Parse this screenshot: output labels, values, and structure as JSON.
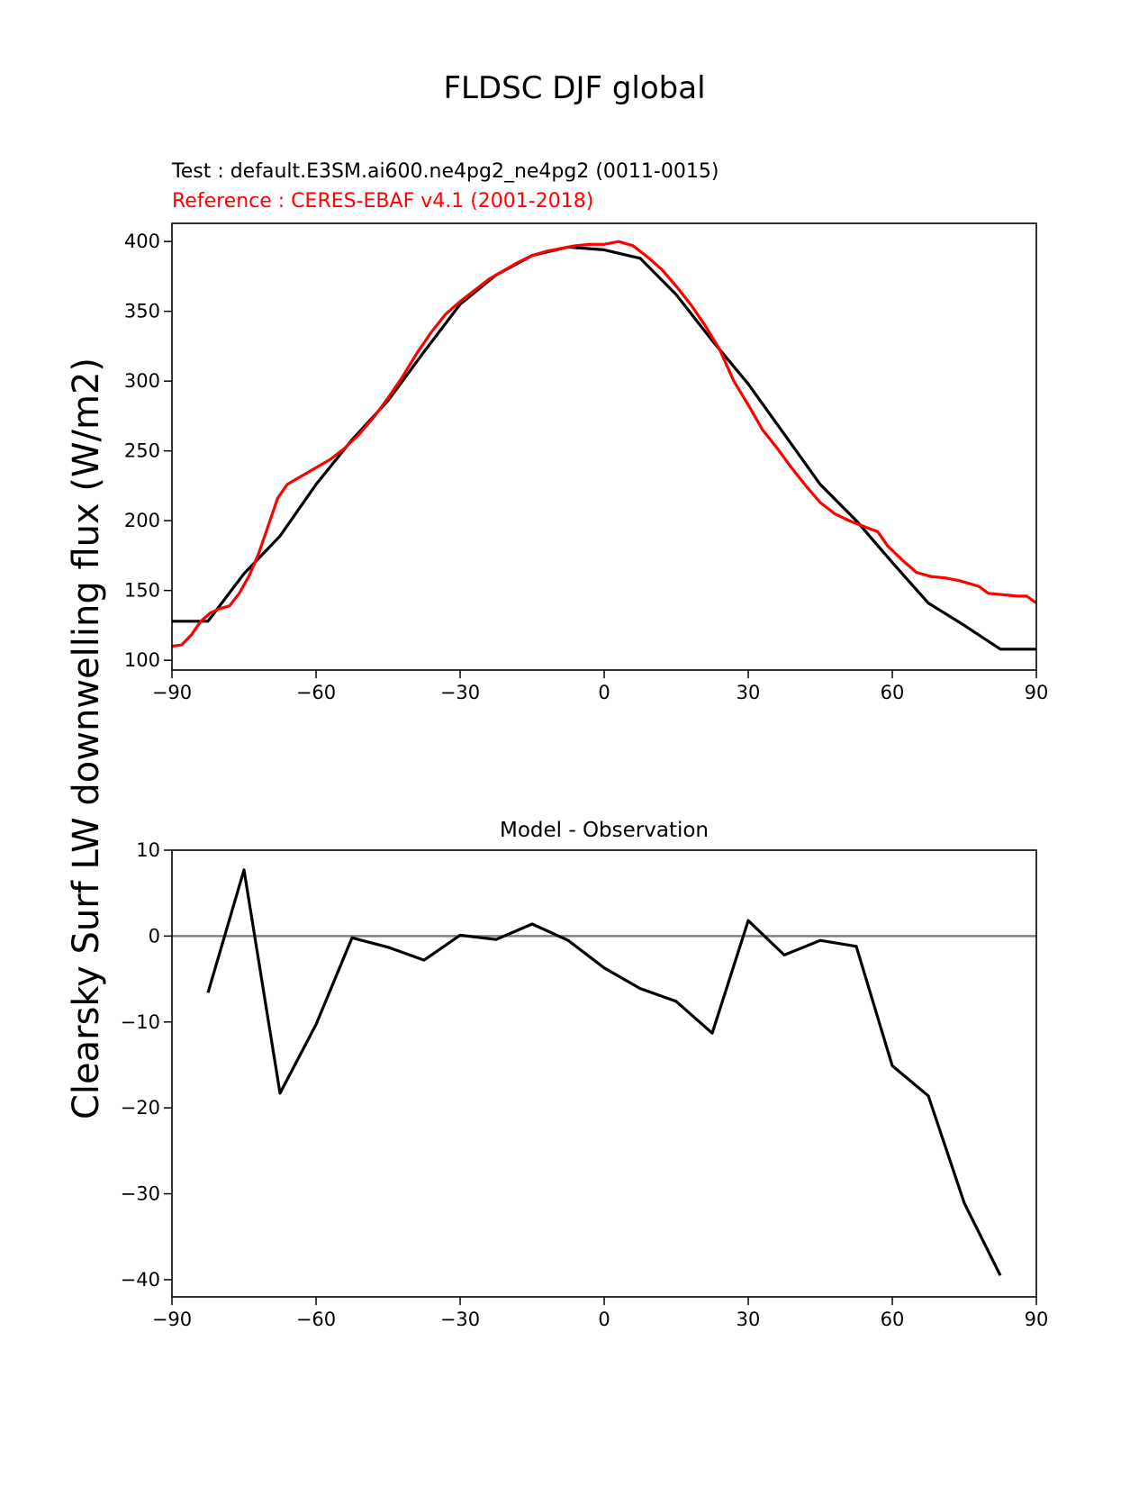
{
  "figure": {
    "title": "FLDSC DJF global",
    "ylabel": "Clearsky Surf LW downwelling flux (W/m2)"
  },
  "colors": {
    "test": "#000000",
    "reference": "#ff0000",
    "zero_line": "#808080",
    "frame": "#000000"
  },
  "chart_data": [
    {
      "type": "line",
      "name_test": "Test : default.E3SM.ai600.ne4pg2_ne4pg2 (0011-0015)",
      "name_reference": "Reference : CERES-EBAF v4.1 (2001-2018)",
      "xlim": [
        -90,
        90
      ],
      "ylim": [
        93,
        413
      ],
      "xticks": [
        -90,
        -60,
        -30,
        0,
        30,
        60,
        90
      ],
      "xtick_labels": [
        "−90",
        "−60",
        "−30",
        "0",
        "30",
        "60",
        "90"
      ],
      "yticks": [
        100,
        150,
        200,
        250,
        300,
        350,
        400
      ],
      "ytick_labels": [
        "100",
        "150",
        "200",
        "250",
        "300",
        "350",
        "400"
      ],
      "series": [
        {
          "key": "test",
          "x": [
            -90,
            -82.5,
            -75,
            -67.5,
            -60,
            -52.5,
            -45,
            -37.5,
            -30,
            -22.5,
            -15,
            -7.5,
            0,
            7.5,
            15,
            22.5,
            30,
            37.5,
            45,
            52.5,
            60,
            67.5,
            75,
            82.5,
            90
          ],
          "y": [
            128,
            128,
            162,
            189,
            226,
            258,
            286,
            321,
            355,
            376,
            390,
            396,
            394,
            388,
            362,
            329,
            298,
            262,
            226,
            200,
            170,
            141,
            125,
            108,
            108
          ]
        },
        {
          "key": "reference",
          "x": [
            -90,
            -88,
            -86,
            -84,
            -82,
            -80,
            -78,
            -76,
            -74,
            -72,
            -70,
            -68,
            -66,
            -64,
            -62,
            -60,
            -57,
            -54,
            -51,
            -48,
            -45,
            -42,
            -39,
            -36,
            -33,
            -30,
            -27,
            -24,
            -21,
            -18,
            -15,
            -12,
            -9,
            -6,
            -3,
            0,
            3,
            6,
            9,
            12,
            15,
            18,
            21,
            24,
            27,
            30,
            33,
            36,
            39,
            42,
            45,
            48,
            51,
            54,
            57,
            59,
            62,
            65,
            68,
            71,
            74,
            76,
            78,
            80,
            83,
            86,
            88,
            90
          ],
          "y": [
            110,
            111,
            118,
            128,
            134,
            137,
            139,
            148,
            160,
            176,
            196,
            216,
            226,
            230,
            234,
            238,
            244,
            252,
            262,
            274,
            288,
            303,
            320,
            335,
            348,
            357,
            365,
            373,
            379,
            385,
            390,
            393,
            395,
            397,
            398,
            398,
            400,
            397,
            389,
            380,
            368,
            355,
            340,
            323,
            300,
            283,
            265,
            252,
            238,
            225,
            213,
            205,
            200,
            196,
            192,
            182,
            172,
            163,
            160,
            159,
            157,
            155,
            153,
            148,
            147,
            146,
            146,
            141
          ]
        }
      ]
    },
    {
      "type": "line",
      "title": "Model - Observation",
      "xlim": [
        -90,
        90
      ],
      "ylim": [
        -42,
        10
      ],
      "xticks": [
        -90,
        -60,
        -30,
        0,
        30,
        60,
        90
      ],
      "xtick_labels": [
        "−90",
        "−60",
        "−30",
        "0",
        "30",
        "60",
        "90"
      ],
      "yticks": [
        -40,
        -30,
        -20,
        -10,
        0,
        10
      ],
      "ytick_labels": [
        "−40",
        "−30",
        "−20",
        "−10",
        "0",
        "10"
      ],
      "zero_line": 0,
      "series": [
        {
          "key": "diff",
          "x": [
            -82.5,
            -75,
            -67.5,
            -60,
            -52.5,
            -45,
            -37.5,
            -30,
            -22.5,
            -15,
            -7.5,
            0,
            7.5,
            15,
            22.5,
            30,
            37.5,
            45,
            52.5,
            60,
            67.5,
            75,
            82.5
          ],
          "y": [
            -6.6,
            7.7,
            -18.3,
            -10.3,
            -0.2,
            -1.3,
            -2.8,
            0.1,
            -0.4,
            1.4,
            -0.5,
            -3.7,
            -6.1,
            -7.6,
            -11.3,
            1.8,
            -2.2,
            -0.5,
            -1.2,
            -15.1,
            -18.6,
            -31.1,
            -39.5
          ]
        }
      ]
    }
  ]
}
